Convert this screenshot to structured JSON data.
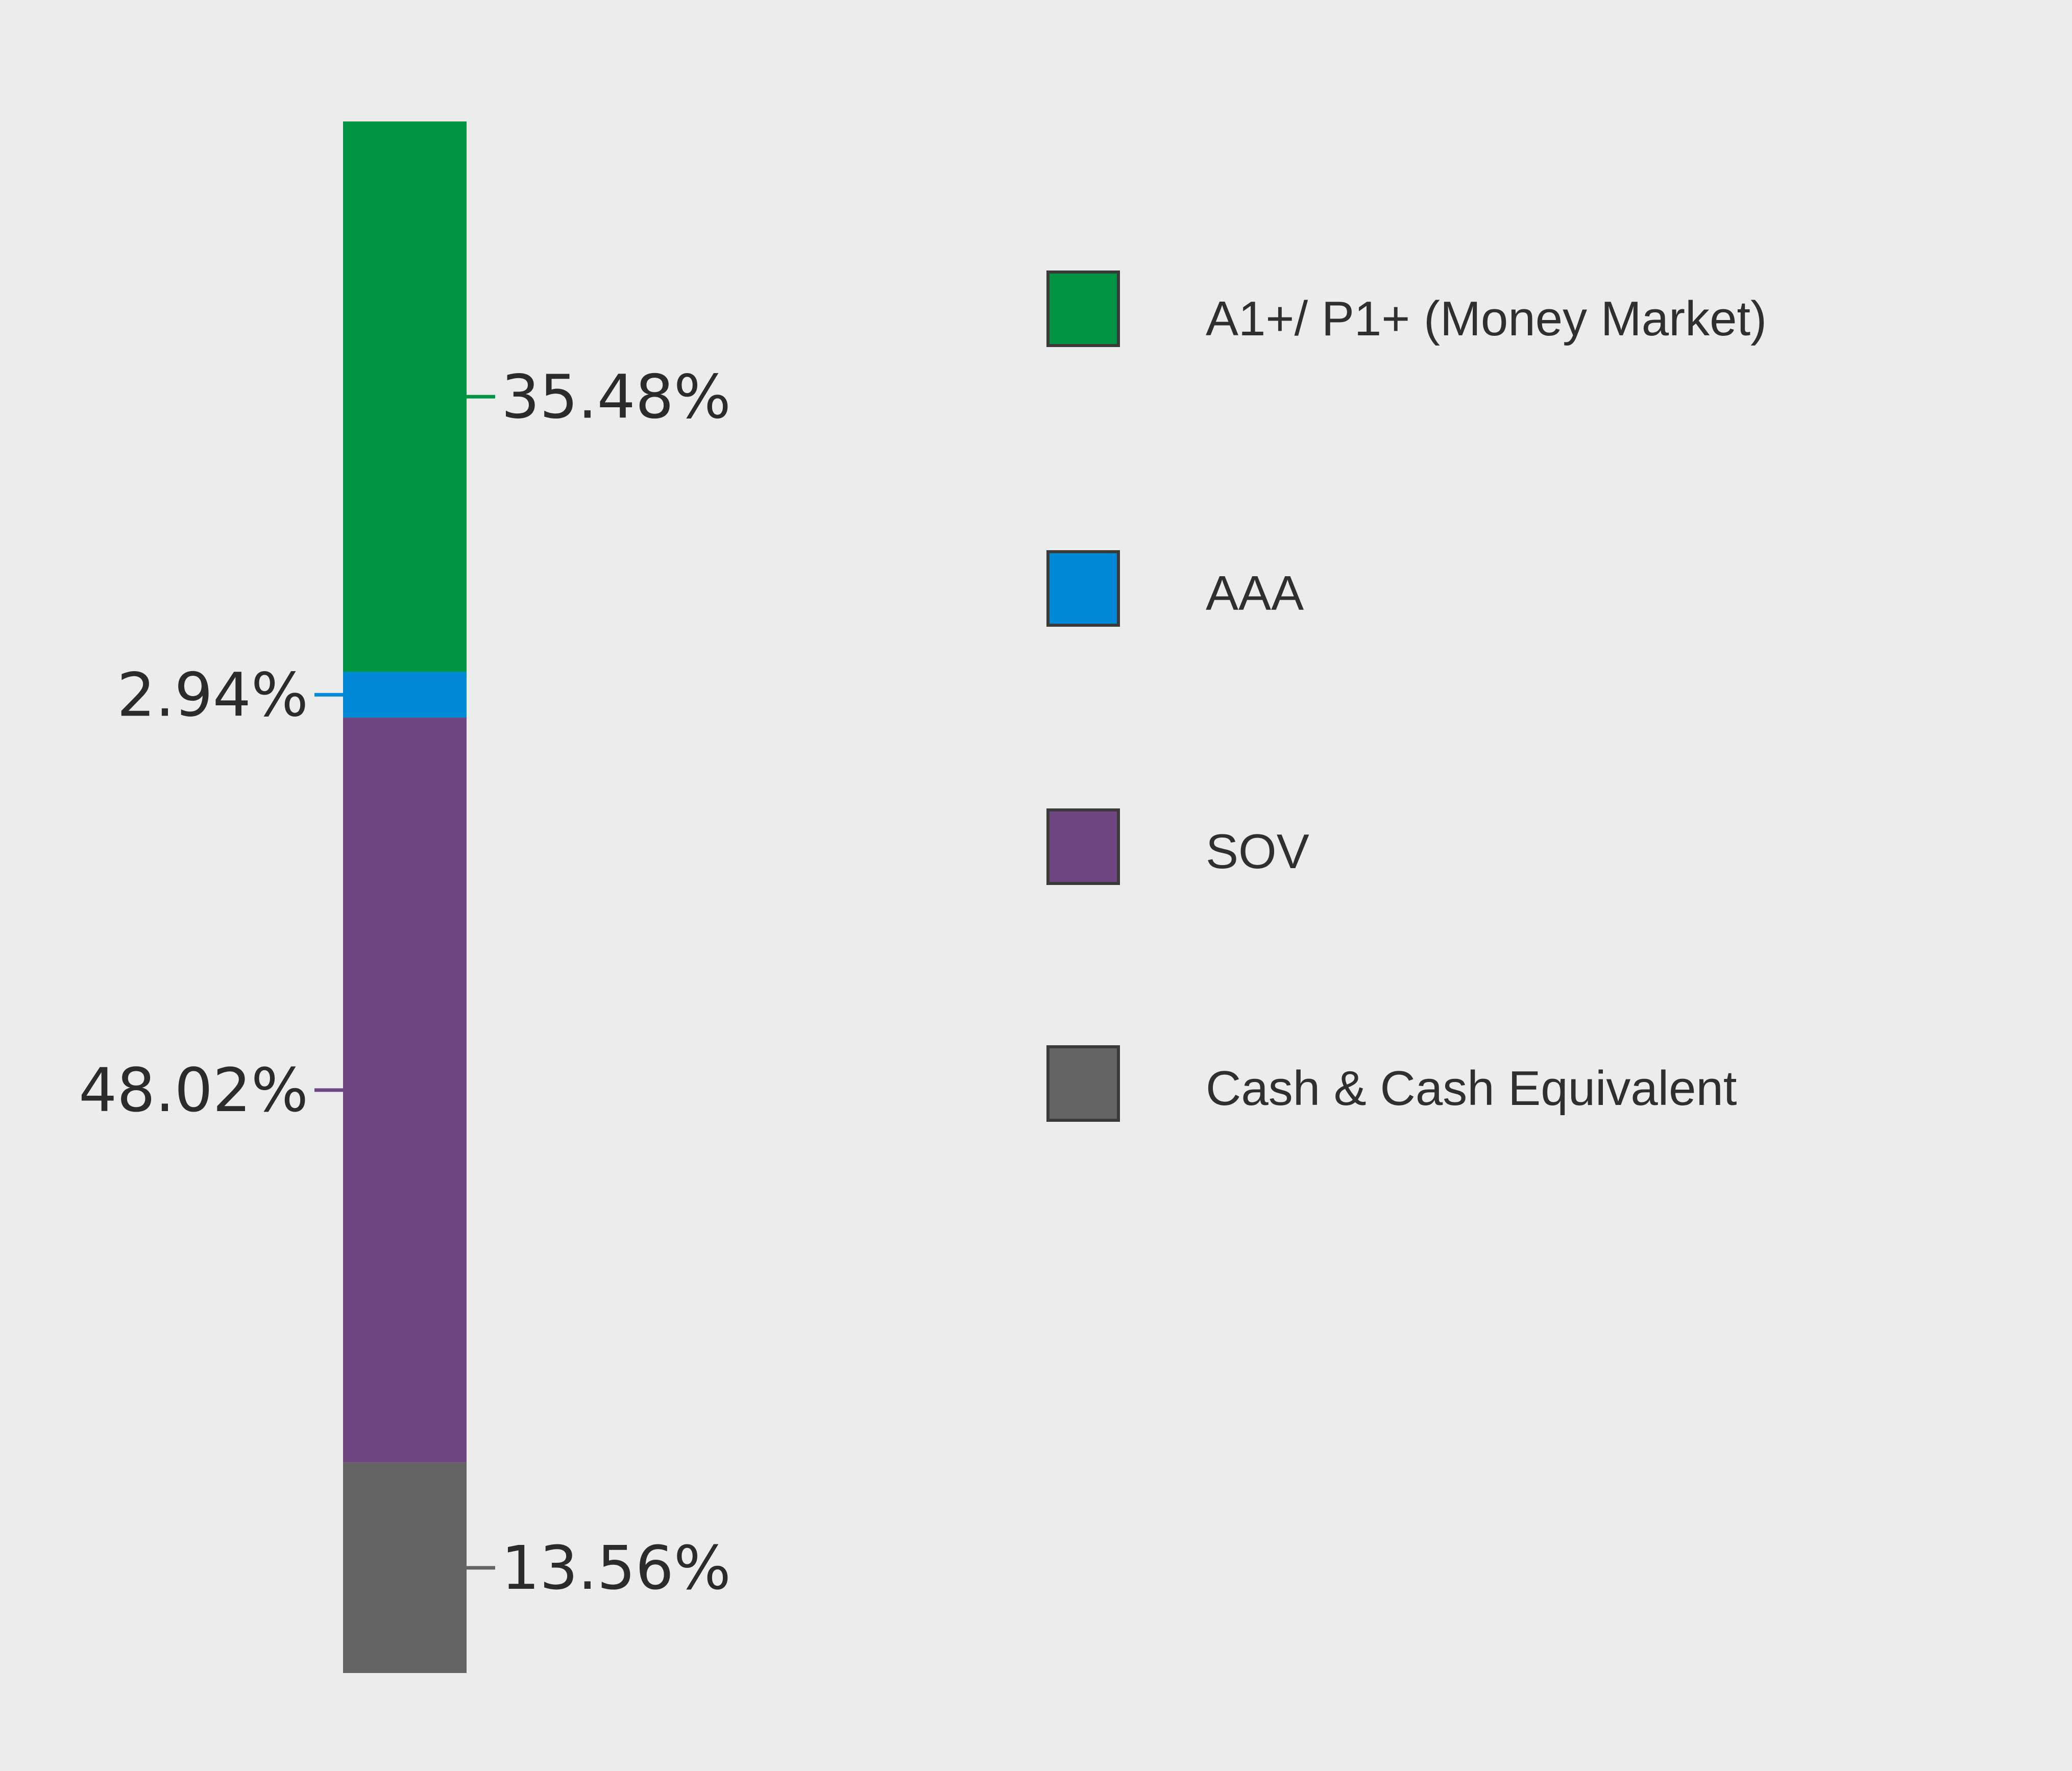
{
  "chart_data": {
    "type": "bar",
    "stacked": true,
    "orientation": "vertical",
    "series": [
      {
        "name": "A1+/ P1+ (Money Market)",
        "value": 35.48,
        "label": "35.48%",
        "color": "#009444",
        "label_side": "right"
      },
      {
        "name": "AAA",
        "value": 2.94,
        "label": "2.94%",
        "color": "#0089d6",
        "label_side": "left"
      },
      {
        "name": "SOV",
        "value": 48.02,
        "label": "48.02%",
        "color": "#6f4682",
        "label_side": "left"
      },
      {
        "name": "Cash & Cash Equivalent",
        "value": 13.56,
        "label": "13.56%",
        "color": "#646464",
        "label_side": "right"
      }
    ],
    "legend": {
      "placement": "right",
      "items": [
        {
          "label": "A1+/ P1+ (Money Market)",
          "color": "#009444"
        },
        {
          "label": "AAA",
          "color": "#0089d6"
        },
        {
          "label": "SOV",
          "color": "#6f4682"
        },
        {
          "label": "Cash & Cash Equivalent",
          "color": "#646464"
        }
      ]
    },
    "background": "#ebedec"
  }
}
